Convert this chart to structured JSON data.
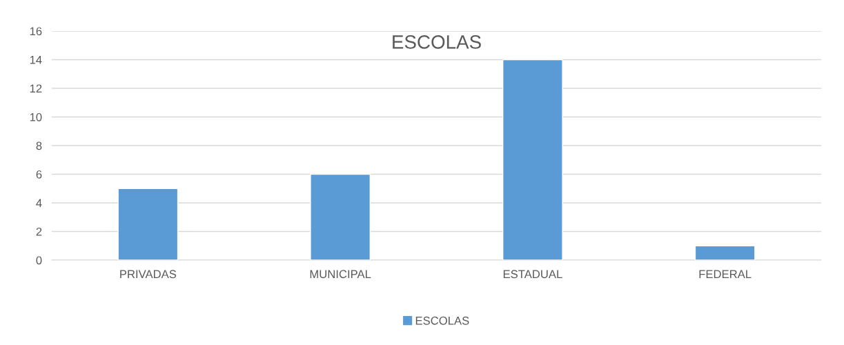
{
  "chart_data": {
    "type": "bar",
    "title": "ESCOLAS",
    "categories": [
      "PRIVADAS",
      "MUNICIPAL",
      "ESTADUAL",
      "FEDERAL"
    ],
    "series": [
      {
        "name": "ESCOLAS",
        "color": "#5b9bd5",
        "values": [
          5,
          6,
          14,
          1
        ]
      }
    ],
    "ylim": [
      0,
      16
    ],
    "yticks": [
      0,
      2,
      4,
      6,
      8,
      10,
      12,
      14,
      16
    ],
    "grid": "y",
    "legend": "bottom"
  }
}
